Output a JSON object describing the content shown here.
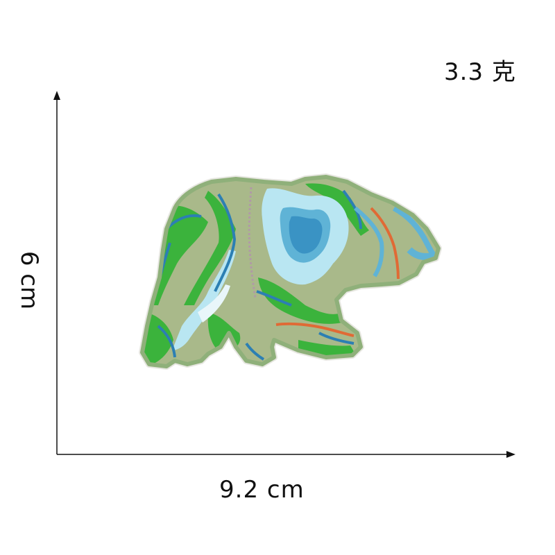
{
  "weight": "3.3 克",
  "width": "9.2  cm",
  "height": "6 cm",
  "colors": {
    "axis": "#111111",
    "patch_border": "#8fb07a",
    "patch_base": "#a9b98a",
    "green": "#3bb33c",
    "light_blue": "#b9e6f2",
    "mid_blue": "#5fb3d6",
    "dark_blue": "#2c7fb3",
    "orange": "#e06a35"
  },
  "icons": [
    "bear-patch-image"
  ]
}
